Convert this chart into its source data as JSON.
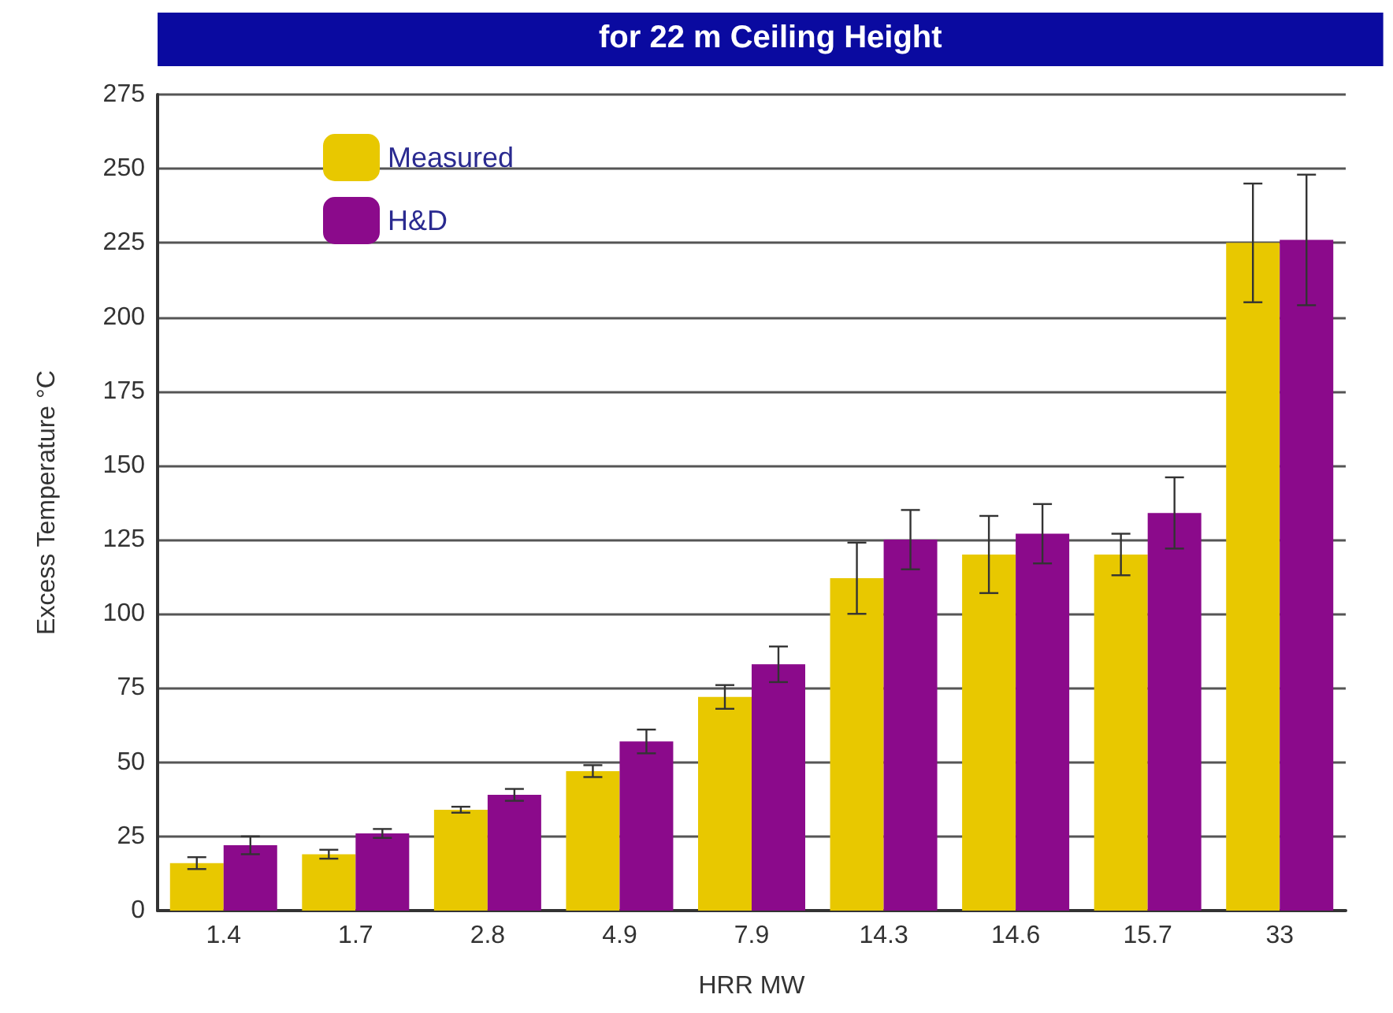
{
  "chart_data": {
    "type": "bar",
    "title": "for 22 m Ceiling Height",
    "xlabel": "HRR MW",
    "ylabel": "Excess Temperature °C",
    "categories": [
      "1.4",
      "1.7",
      "2.8",
      "4.9",
      "7.9",
      "14.3",
      "14.6",
      "15.7",
      "33"
    ],
    "series": [
      {
        "name": "Measured",
        "color": "#e8c800",
        "values": [
          16,
          19,
          34,
          47,
          72,
          112,
          120,
          120,
          225
        ],
        "errors": [
          2,
          1.5,
          1,
          2,
          4,
          12,
          13,
          7,
          20
        ]
      },
      {
        "name": "H&D",
        "color": "#8b0a8b",
        "values": [
          22,
          26,
          39,
          57,
          83,
          125,
          127,
          134,
          226
        ],
        "errors": [
          3,
          1.5,
          2,
          4,
          6,
          10,
          10,
          12,
          22
        ]
      }
    ],
    "ylim": [
      0,
      275
    ],
    "yticks": [
      0,
      25,
      50,
      75,
      100,
      125,
      150,
      175,
      200,
      225,
      250,
      275
    ],
    "grid": "y",
    "legend": "top left"
  }
}
